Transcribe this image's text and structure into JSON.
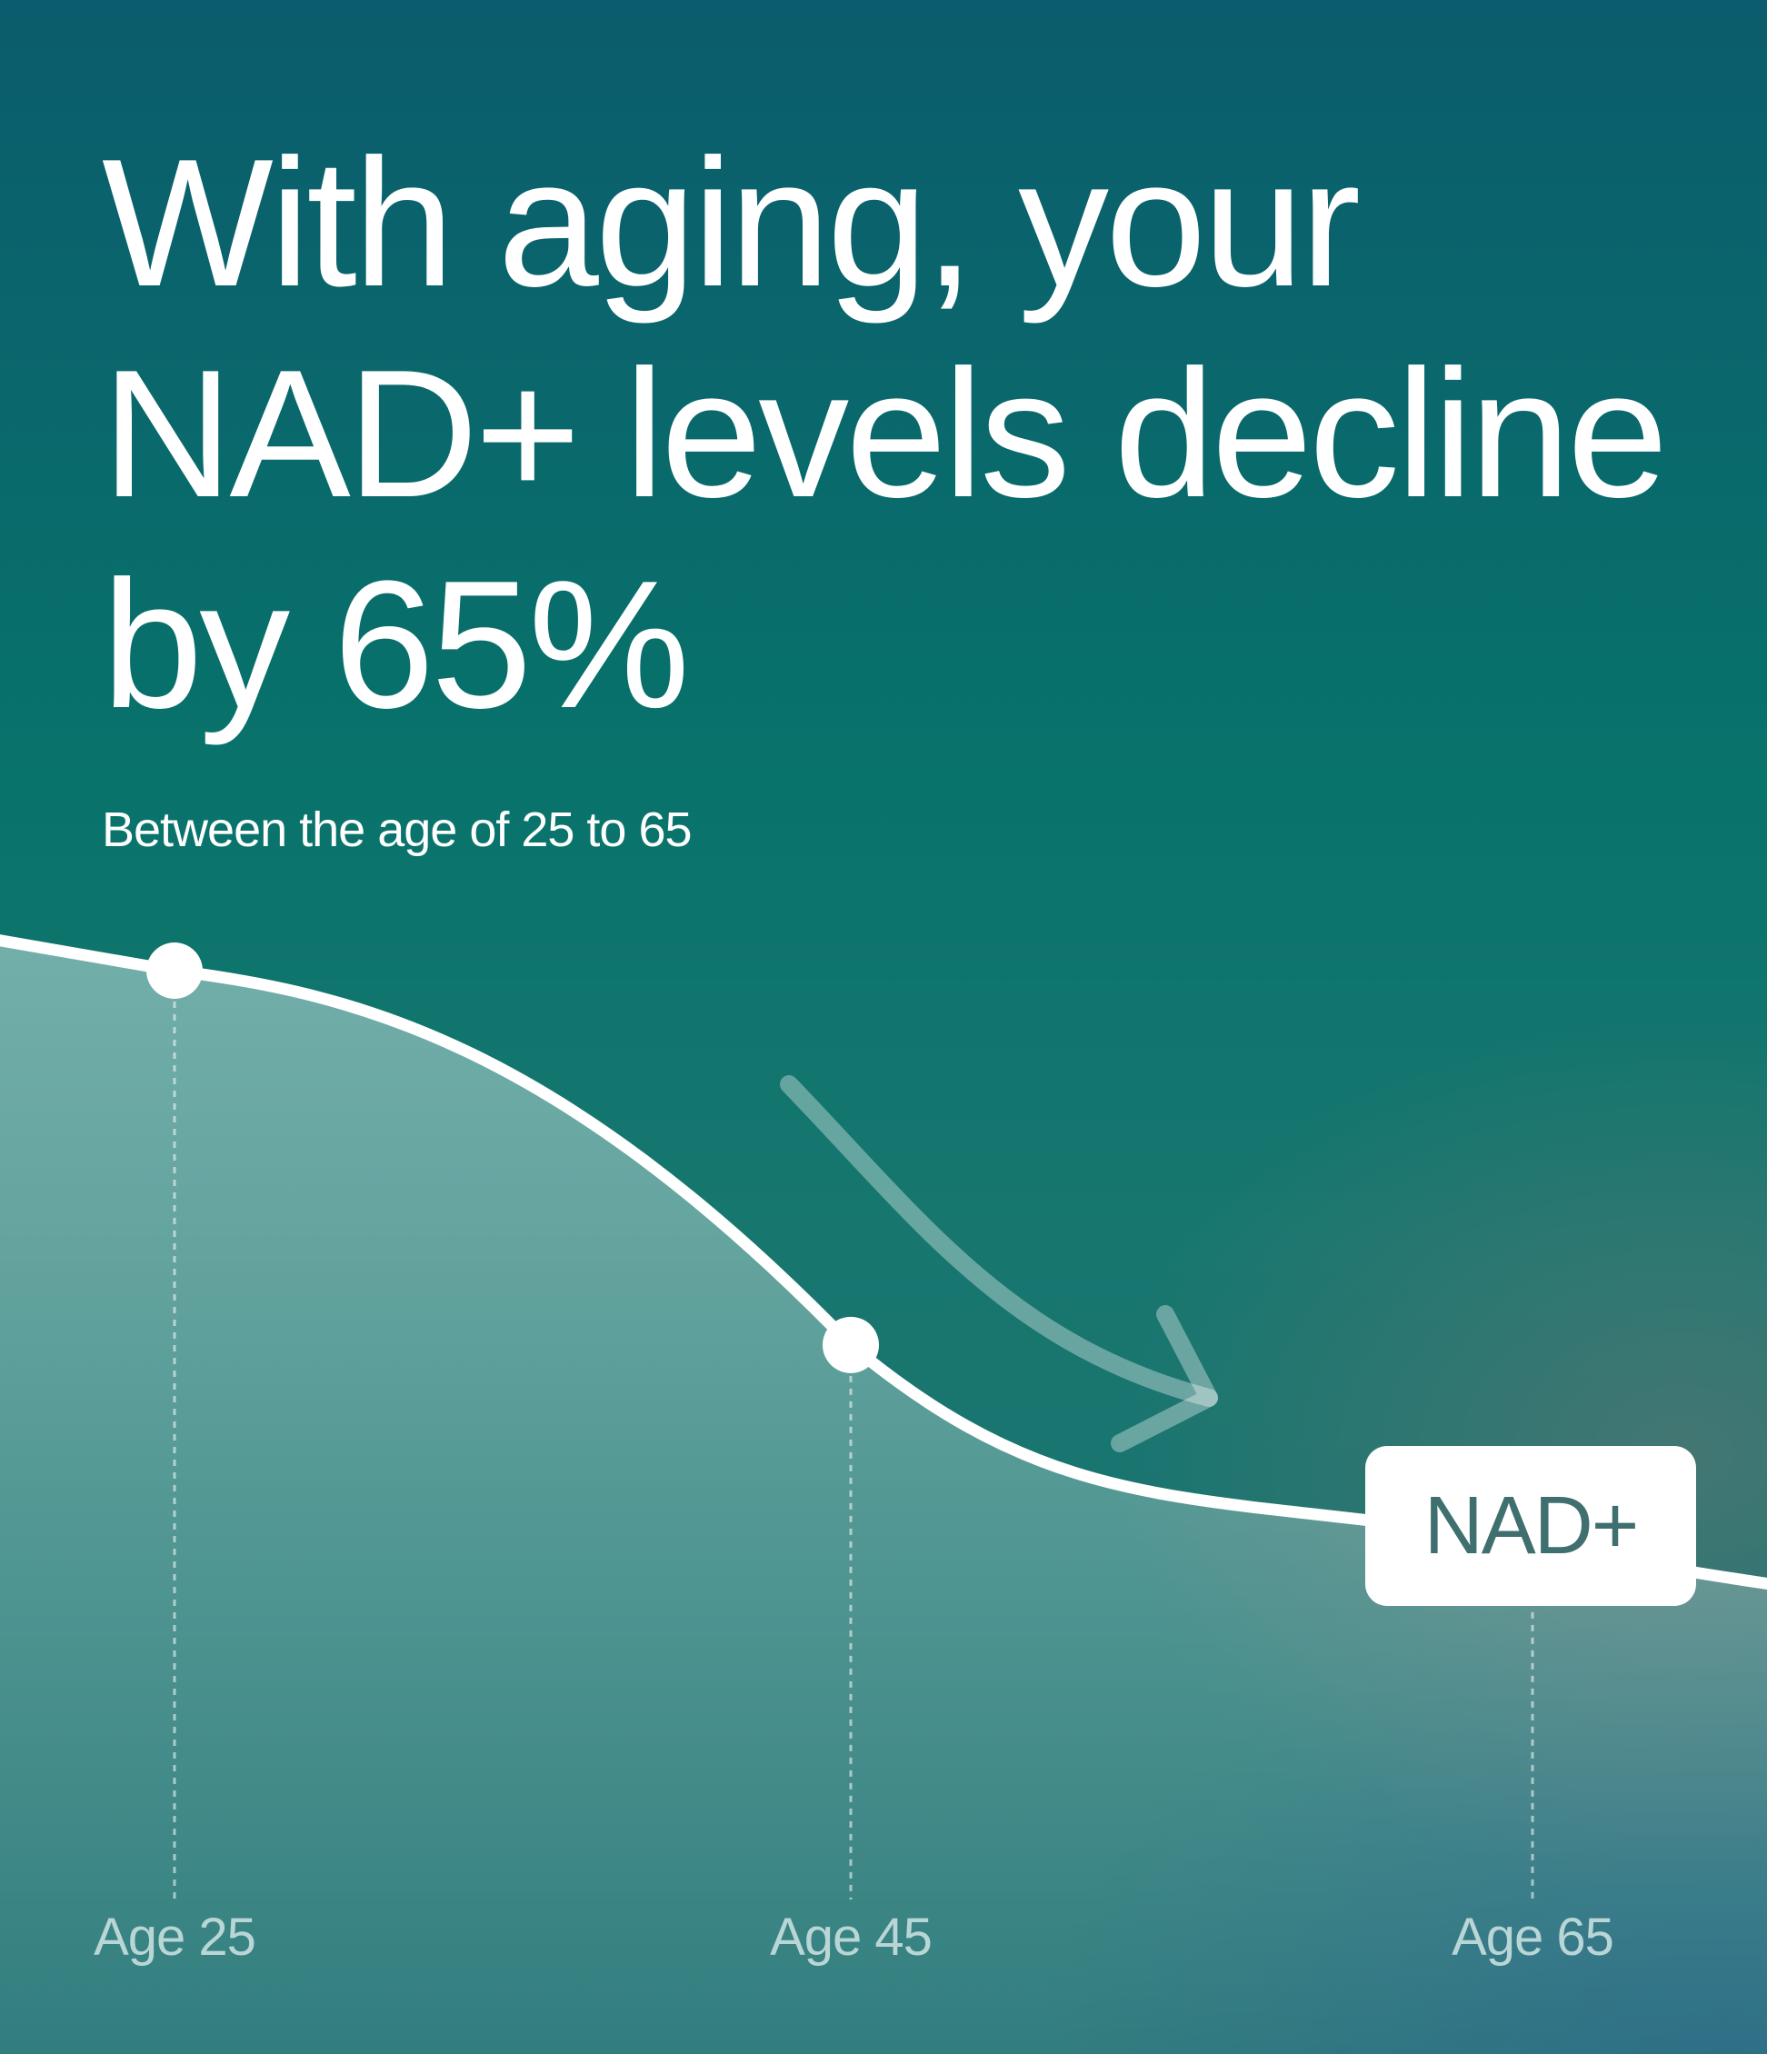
{
  "headline": {
    "line1": "With aging, your",
    "line2": "NAD+ levels decline",
    "line3": "by 65%"
  },
  "subtitle": "Between the age of 25 to 65",
  "badge": "NAD+",
  "colors": {
    "background_top": "#0b5c6c",
    "background_mid": "#08736b",
    "curve": "#ffffff",
    "badge_text": "#3f6f6e",
    "age_label": "#b9d6d6"
  },
  "chart_data": {
    "type": "area",
    "categories": [
      "Age 25",
      "Age 45",
      "Age 65"
    ],
    "series": [
      {
        "values": [
          100,
          57.5,
          35
        ]
      }
    ],
    "annotation": "NAD+",
    "trend": "decline",
    "grid": false
  }
}
